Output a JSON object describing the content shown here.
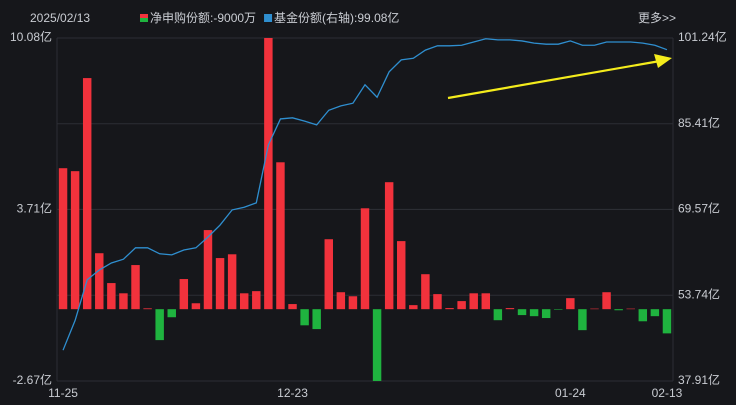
{
  "chart_data": {
    "type": "bar_line",
    "date": "2025/02/13",
    "more": "更多>>",
    "categories": [
      "11-25",
      null,
      null,
      null,
      null,
      null,
      null,
      null,
      null,
      null,
      null,
      null,
      null,
      null,
      null,
      null,
      null,
      null,
      null,
      "12-23",
      null,
      null,
      null,
      null,
      null,
      null,
      null,
      null,
      null,
      null,
      null,
      null,
      null,
      null,
      null,
      null,
      null,
      null,
      null,
      null,
      null,
      null,
      "01-24",
      null,
      null,
      null,
      null,
      null,
      null,
      null,
      "02-13"
    ],
    "series": [
      {
        "name": "净申购份额",
        "color": "#f2323c",
        "negative_color": "#1fb33f",
        "readout": ":-9000万",
        "values": [
          5.24,
          5.13,
          8.59,
          2.08,
          0.97,
          0.59,
          1.64,
          0.03,
          -1.15,
          -0.3,
          1.12,
          0.22,
          2.94,
          1.9,
          2.04,
          0.59,
          0.67,
          10.08,
          5.46,
          0.19,
          -0.6,
          -0.74,
          2.6,
          0.63,
          0.48,
          3.75,
          -2.67,
          4.72,
          2.53,
          0.15,
          1.3,
          0.56,
          0.04,
          0.3,
          0.59,
          0.59,
          -0.41,
          0.04,
          -0.22,
          -0.26,
          -0.33,
          -0.02,
          0.41,
          -0.78,
          0.02,
          0.63,
          -0.04,
          0.02,
          -0.45,
          -0.26,
          -0.9
        ]
      },
      {
        "name": "基金份额(右轴)",
        "color": "#2f8fd0",
        "axis": "y2",
        "readout": ":99.08亿",
        "values": [
          43.6,
          49.1,
          56.6,
          58.4,
          59.7,
          60.4,
          62.5,
          62.5,
          61.4,
          61.2,
          62.1,
          62.5,
          64.5,
          66.7,
          69.5,
          70.0,
          70.8,
          81.5,
          86.3,
          86.5,
          85.9,
          85.2,
          87.9,
          88.7,
          89.2,
          92.6,
          90.3,
          95.0,
          97.2,
          97.5,
          99.0,
          99.8,
          99.8,
          99.9,
          100.5,
          101.1,
          100.9,
          100.9,
          100.7,
          100.3,
          100.1,
          100.1,
          100.7,
          99.9,
          99.9,
          100.5,
          100.5,
          100.5,
          100.3,
          99.9,
          99.08
        ]
      }
    ],
    "ylim": [
      -2.67,
      10.08
    ],
    "yticks": [
      {
        "value": 10.08,
        "label": "10.08亿"
      },
      {
        "value": 3.71,
        "label": "3.71亿"
      },
      {
        "value": -2.67,
        "label": "-2.67亿"
      }
    ],
    "y2lim": [
      37.91,
      101.24
    ],
    "y2ticks": [
      {
        "value": 101.24,
        "label": "101.24亿"
      },
      {
        "value": 85.41,
        "label": "85.41亿"
      },
      {
        "value": 69.57,
        "label": "69.57亿"
      },
      {
        "value": 53.74,
        "label": "53.74亿"
      },
      {
        "value": 37.91,
        "label": "37.91亿"
      }
    ],
    "grid": true
  }
}
